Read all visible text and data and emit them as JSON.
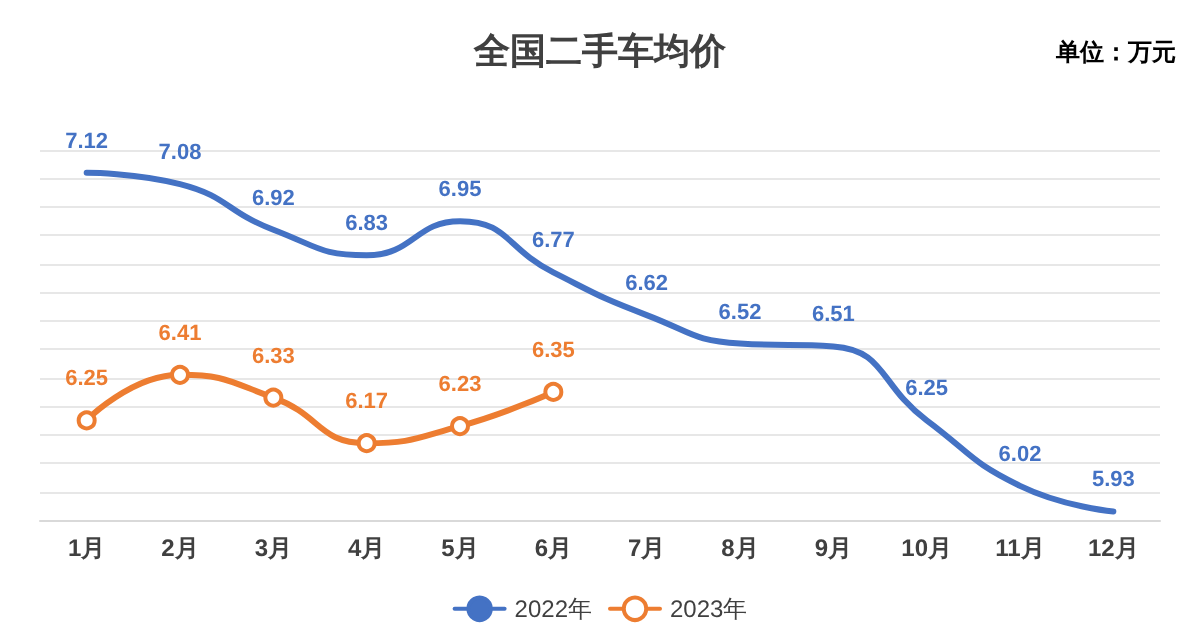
{
  "chart_data": {
    "type": "line",
    "title": "全国二手车均价",
    "annotations": [
      "单位：万元"
    ],
    "categories": [
      "1月",
      "2月",
      "3月",
      "4月",
      "5月",
      "6月",
      "7月",
      "8月",
      "9月",
      "10月",
      "11月",
      "12月"
    ],
    "series": [
      {
        "name": "2022年",
        "color": "#4472c4",
        "marker": "none",
        "values": [
          7.12,
          7.08,
          6.92,
          6.83,
          6.95,
          6.77,
          6.62,
          6.52,
          6.51,
          6.25,
          6.02,
          5.93
        ]
      },
      {
        "name": "2023年",
        "color": "#ed7d31",
        "marker": "circle",
        "values": [
          6.25,
          6.41,
          6.33,
          6.17,
          6.23,
          6.35,
          null,
          null,
          null,
          null,
          null,
          null
        ]
      }
    ],
    "data_labels": true,
    "grid": "y",
    "legend": "bottom",
    "tick_labels": "x",
    "line_style": "solid"
  }
}
